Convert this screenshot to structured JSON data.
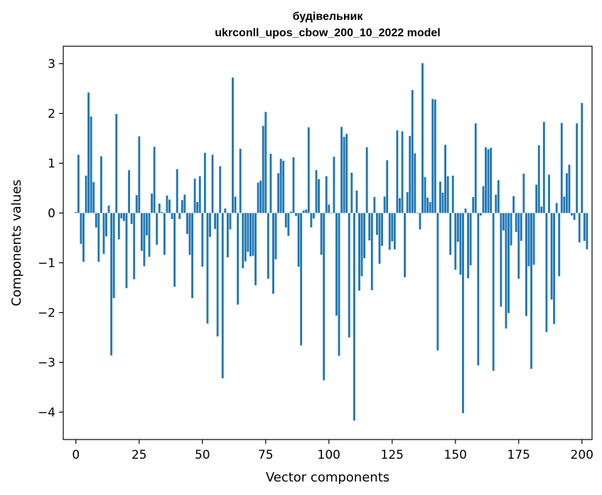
{
  "chart_data": {
    "type": "bar",
    "title_line1": "будівельник",
    "title_line2": "ukrconll_upos_cbow_200_10_2022 model",
    "xlabel": "Vector components",
    "ylabel": "Components values",
    "xlim": [
      -5,
      204
    ],
    "ylim": [
      -4.55,
      3.35
    ],
    "xticks": [
      0,
      25,
      50,
      75,
      100,
      125,
      150,
      175,
      200
    ],
    "yticks": [
      -4,
      -3,
      -2,
      -1,
      0,
      1,
      2,
      3
    ],
    "bar_color": "#1f77b4",
    "values": [
      0.02,
      1.17,
      -0.62,
      -0.98,
      0.75,
      2.42,
      1.94,
      0.62,
      -0.29,
      -0.98,
      1.14,
      -0.82,
      -0.47,
      0.15,
      -2.86,
      -1.71,
      1.99,
      -0.53,
      -0.11,
      -0.16,
      -1.51,
      0.86,
      -0.22,
      -1.33,
      0.36,
      1.54,
      -0.76,
      -1.07,
      -0.45,
      -0.88,
      0.39,
      1.33,
      -0.64,
      0.19,
      0.02,
      -0.84,
      0.35,
      0.27,
      -0.12,
      -1.48,
      0.88,
      -0.12,
      0.26,
      0.37,
      -0.42,
      -0.84,
      -1.71,
      0.69,
      0.22,
      0.74,
      -1.08,
      1.21,
      -2.22,
      -0.48,
      1.17,
      -0.32,
      -2.48,
      0.94,
      -3.32,
      0.09,
      -0.89,
      -0.33,
      2.72,
      0.33,
      -1.84,
      1.29,
      -1.11,
      -0.97,
      -0.78,
      -0.87,
      -0.86,
      -1.45,
      0.61,
      0.65,
      1.75,
      2.03,
      -1.32,
      1.19,
      -1.62,
      -0.93,
      0.8,
      1.09,
      1.05,
      -0.29,
      -0.46,
      0.03,
      1.12,
      -0.06,
      -1.08,
      -2.66,
      0.05,
      0.07,
      1.72,
      -0.29,
      -0.11,
      0.86,
      0.68,
      -0.84,
      -3.36,
      0.74,
      0.17,
      -0.01,
      1.13,
      -2.06,
      -2.87,
      1.73,
      1.53,
      1.59,
      -2.5,
      0.81,
      -4.17,
      0.45,
      -1.56,
      -1.27,
      -0.91,
      1.32,
      -0.55,
      -1.55,
      0.32,
      -0.44,
      -1.02,
      -0.66,
      0.33,
      1.06,
      -0.74,
      -0.57,
      -0.73,
      1.66,
      0.3,
      1.64,
      -1.29,
      0.42,
      1.55,
      2.47,
      1.2,
      0.01,
      -0.33,
      3.01,
      0.72,
      0.31,
      0.22,
      2.29,
      2.28,
      -2.76,
      0.63,
      0.41,
      1.37,
      0.74,
      -0.84,
      0.75,
      -1.14,
      -0.58,
      -1.24,
      -4.02,
      0.09,
      -1.31,
      -1.05,
      0.32,
      1.8,
      -3.06,
      -0.05,
      0.54,
      1.32,
      1.28,
      1.31,
      -3.17,
      0.37,
      0.66,
      -1.88,
      -0.35,
      -2.32,
      -2.01,
      -0.65,
      0.34,
      -0.38,
      -1.32,
      -0.56,
      0.79,
      -2.07,
      -1.07,
      -3.13,
      -1.04,
      0.57,
      1.36,
      0.13,
      1.83,
      -2.39,
      0.77,
      -1.74,
      -2.23,
      0.2,
      -1.27,
      1.81,
      0.33,
      0.8,
      0.97,
      -0.05,
      -0.14,
      1.8,
      -0.59,
      2.21,
      -0.56,
      -0.73
    ]
  }
}
